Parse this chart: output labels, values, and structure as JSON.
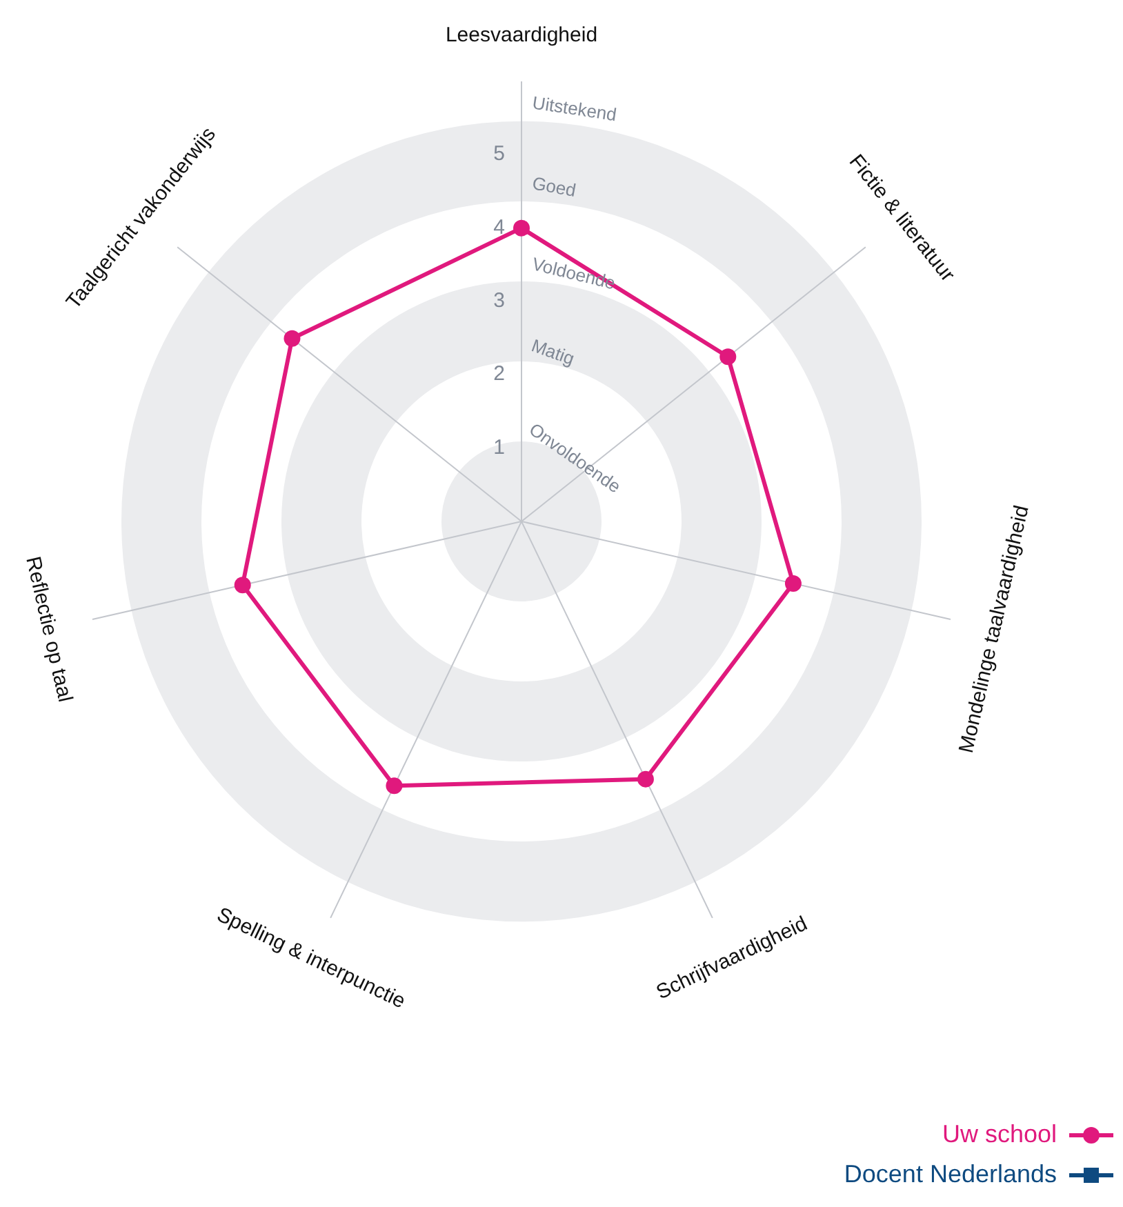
{
  "chart_data": {
    "type": "radar",
    "categories": [
      "Leesvaardigheid",
      "Fictie & literatuur",
      "Mondelinge taalvaardigheid",
      "Schrijfvaardigheid",
      "Spelling & interpunctie",
      "Reflectie op taal",
      "Taalgericht vakonderwijs"
    ],
    "series": [
      {
        "name": "Uw school",
        "color": "#e0197d",
        "marker": "circle",
        "values": [
          4.0,
          3.6,
          3.8,
          3.9,
          4.0,
          3.9,
          4.0
        ]
      },
      {
        "name": "Docent Nederlands",
        "color": "#0e4a80",
        "marker": "square",
        "values": [
          null,
          null,
          null,
          null,
          null,
          null,
          null
        ]
      }
    ],
    "ylim": [
      0,
      5.5
    ],
    "yticks": [
      1,
      2,
      3,
      4,
      5
    ],
    "annotations": [
      "Onvoldoende",
      "Matig",
      "Voldoende",
      "Goed",
      "Uitstekend"
    ],
    "grid": true,
    "legend": "bottom right"
  }
}
